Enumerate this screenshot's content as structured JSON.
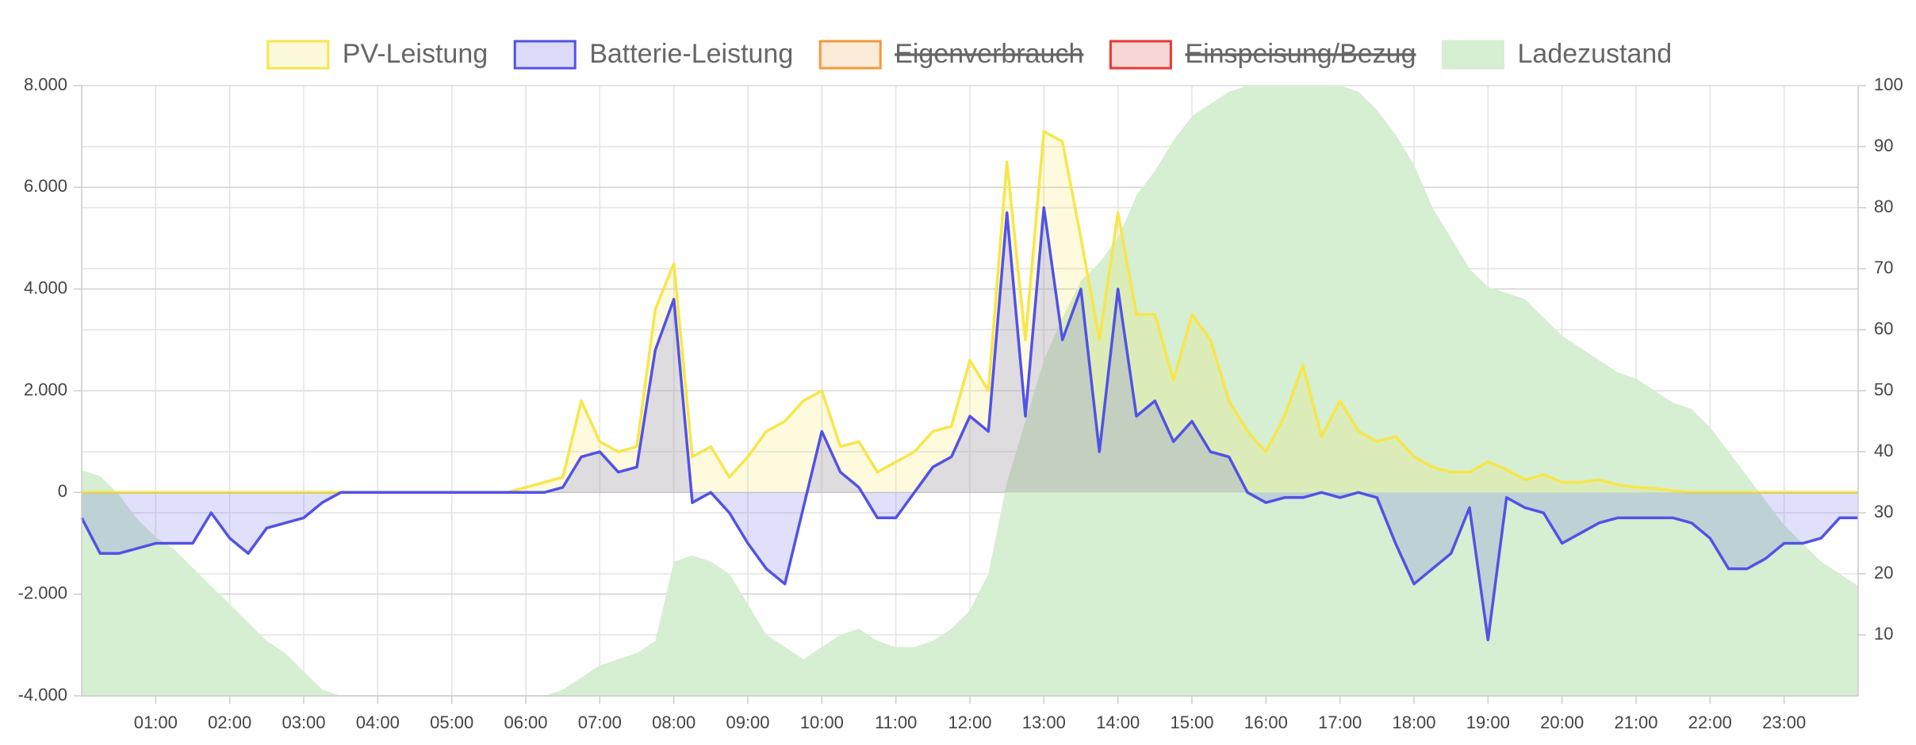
{
  "chart_data": {
    "type": "line",
    "x": [
      0,
      0.25,
      0.5,
      0.75,
      1,
      1.25,
      1.5,
      1.75,
      2,
      2.25,
      2.5,
      2.75,
      3,
      3.25,
      3.5,
      3.75,
      4,
      4.25,
      4.5,
      4.75,
      5,
      5.25,
      5.5,
      5.75,
      6,
      6.25,
      6.5,
      6.75,
      7,
      7.25,
      7.5,
      7.75,
      8,
      8.25,
      8.5,
      8.75,
      9,
      9.25,
      9.5,
      9.75,
      10,
      10.25,
      10.5,
      10.75,
      11,
      11.25,
      11.5,
      11.75,
      12,
      12.25,
      12.5,
      12.75,
      13,
      13.25,
      13.5,
      13.75,
      14,
      14.25,
      14.5,
      14.75,
      15,
      15.25,
      15.5,
      15.75,
      16,
      16.25,
      16.5,
      16.75,
      17,
      17.25,
      17.5,
      17.75,
      18,
      18.25,
      18.5,
      18.75,
      19,
      19.25,
      19.5,
      19.75,
      20,
      20.25,
      20.5,
      20.75,
      21,
      21.25,
      21.5,
      21.75,
      22,
      22.25,
      22.5,
      22.75,
      23,
      23.25,
      23.5,
      23.75,
      24
    ],
    "xlim": [
      0,
      24
    ],
    "xticks": [
      {
        "value": 1,
        "label": "01:00"
      },
      {
        "value": 2,
        "label": "02:00"
      },
      {
        "value": 3,
        "label": "03:00"
      },
      {
        "value": 4,
        "label": "04:00"
      },
      {
        "value": 5,
        "label": "05:00"
      },
      {
        "value": 6,
        "label": "06:00"
      },
      {
        "value": 7,
        "label": "07:00"
      },
      {
        "value": 8,
        "label": "08:00"
      },
      {
        "value": 9,
        "label": "09:00"
      },
      {
        "value": 10,
        "label": "10:00"
      },
      {
        "value": 11,
        "label": "11:00"
      },
      {
        "value": 12,
        "label": "12:00"
      },
      {
        "value": 13,
        "label": "13:00"
      },
      {
        "value": 14,
        "label": "14:00"
      },
      {
        "value": 15,
        "label": "15:00"
      },
      {
        "value": 16,
        "label": "16:00"
      },
      {
        "value": 17,
        "label": "17:00"
      },
      {
        "value": 18,
        "label": "18:00"
      },
      {
        "value": 19,
        "label": "19:00"
      },
      {
        "value": 20,
        "label": "20:00"
      },
      {
        "value": 21,
        "label": "21:00"
      },
      {
        "value": 22,
        "label": "22:00"
      },
      {
        "value": 23,
        "label": "23:00"
      }
    ],
    "ylim": [
      -4000,
      8000
    ],
    "yticks": [
      {
        "value": 8000,
        "label": "8.000"
      },
      {
        "value": 6000,
        "label": "6.000"
      },
      {
        "value": 4000,
        "label": "4.000"
      },
      {
        "value": 2000,
        "label": "2.000"
      },
      0,
      {
        "value": -2000,
        "label": "-2.000"
      },
      {
        "value": -4000,
        "label": "-4.000"
      }
    ],
    "y2lim": [
      0,
      100
    ],
    "y2ticks": [
      100,
      90,
      80,
      70,
      60,
      50,
      40,
      30,
      20,
      10
    ],
    "grid": true,
    "legend": "top",
    "series": [
      {
        "name": "PV-Leistung",
        "color": "#f7e64a",
        "fill": true,
        "values": [
          0,
          0,
          0,
          0,
          0,
          0,
          0,
          0,
          0,
          0,
          0,
          0,
          0,
          0,
          0,
          0,
          0,
          0,
          0,
          0,
          0,
          0,
          0,
          0,
          100,
          200,
          300,
          1800,
          1000,
          800,
          900,
          3600,
          4500,
          700,
          900,
          300,
          700,
          1200,
          1400,
          1800,
          2000,
          900,
          1000,
          400,
          600,
          800,
          1200,
          1300,
          2600,
          2000,
          6500,
          3000,
          7100,
          6900,
          5000,
          3000,
          5500,
          3500,
          3500,
          2200,
          3500,
          3000,
          1800,
          1200,
          800,
          1500,
          2500,
          1100,
          1800,
          1200,
          1000,
          1100,
          700,
          500,
          400,
          400,
          600,
          450,
          250,
          350,
          200,
          200,
          250,
          150,
          100,
          80,
          30,
          0,
          0,
          0,
          0,
          0,
          0,
          0,
          0,
          0,
          0
        ]
      },
      {
        "name": "Batterie-Leistung",
        "color": "#5252e6",
        "fill": true,
        "values": [
          -500,
          -1200,
          -1200,
          -1100,
          -1000,
          -1000,
          -1000,
          -400,
          -900,
          -1200,
          -700,
          -600,
          -500,
          -200,
          0,
          0,
          0,
          0,
          0,
          0,
          0,
          0,
          0,
          0,
          0,
          0,
          100,
          700,
          800,
          400,
          500,
          2800,
          3800,
          -200,
          0,
          -400,
          -1000,
          -1500,
          -1800,
          -300,
          1200,
          400,
          100,
          -500,
          -500,
          0,
          500,
          700,
          1500,
          1200,
          5500,
          1500,
          5600,
          3000,
          4000,
          800,
          4000,
          1500,
          1800,
          1000,
          1400,
          800,
          700,
          0,
          -200,
          -100,
          -100,
          0,
          -100,
          0,
          -100,
          -1000,
          -1800,
          -1500,
          -1200,
          -300,
          -2900,
          -100,
          -300,
          -400,
          -1000,
          -800,
          -600,
          -500,
          -500,
          -500,
          -500,
          -600,
          -900,
          -1500,
          -1500,
          -1300,
          -1000,
          -1000,
          -900,
          -500,
          -500
        ]
      },
      {
        "name": "Eigenverbrauch",
        "color": "#f29a3c",
        "hidden": true
      },
      {
        "name": "Einspeisung/Bezug",
        "color": "#e53935",
        "hidden": true
      },
      {
        "name": "Ladezustand",
        "color": "#d6eed2",
        "axis": "y2",
        "area": true,
        "values": [
          37,
          36,
          33,
          29,
          26,
          24,
          21,
          18,
          15,
          12,
          9,
          7,
          4,
          1,
          0,
          0,
          0,
          0,
          0,
          0,
          0,
          0,
          0,
          0,
          0,
          0,
          1,
          3,
          5,
          6,
          7,
          9,
          22,
          23,
          22,
          20,
          15,
          10,
          8,
          6,
          8,
          10,
          11,
          9,
          8,
          8,
          9,
          11,
          14,
          20,
          35,
          45,
          55,
          62,
          68,
          71,
          75,
          82,
          86,
          91,
          95,
          97,
          99,
          100,
          100,
          100,
          100,
          100,
          100,
          99,
          96,
          92,
          87,
          80,
          75,
          70,
          67,
          66,
          65,
          62,
          59,
          57,
          55,
          53,
          52,
          50,
          48,
          47,
          44,
          40,
          36,
          32,
          28,
          25,
          22,
          20,
          18
        ]
      }
    ]
  }
}
